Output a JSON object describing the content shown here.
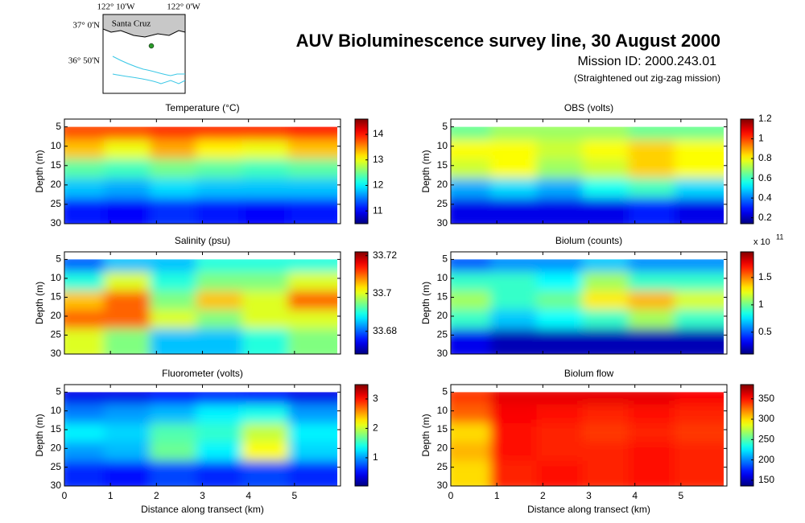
{
  "header": {
    "title": "AUV Bioluminescence survey line, 30 August 2000",
    "mission": "Mission ID: 2000.243.01",
    "note": "(Straightened out zig-zag mission)"
  },
  "map": {
    "lon_labels": [
      "122° 10'W",
      "122° 0'W"
    ],
    "lat_labels": [
      "37° 0'N",
      "36° 50'N"
    ],
    "place": "Santa Cruz"
  },
  "chart_data": [
    {
      "type": "heatmap",
      "title": "Temperature (°C)",
      "ylabel": "Depth (m)",
      "colormap": "jet",
      "x": [
        0.5,
        1.5,
        2.5,
        3.5,
        4.5,
        5.5
      ],
      "y": [
        7.5,
        12.5,
        17.5,
        22.5,
        27.5
      ],
      "z": [
        [
          13.8,
          13.8,
          13.9,
          13.9,
          13.9,
          14.0
        ],
        [
          13.3,
          13.0,
          13.4,
          13.1,
          13.0,
          13.3
        ],
        [
          12.4,
          12.3,
          12.5,
          12.4,
          12.3,
          12.4
        ],
        [
          11.8,
          11.7,
          11.9,
          11.8,
          11.8,
          11.8
        ],
        [
          11.1,
          11.0,
          11.2,
          11.1,
          11.0,
          11.1
        ]
      ],
      "xlim": [
        0,
        6
      ],
      "ylim": [
        3,
        30
      ],
      "y_reversed": true,
      "xticks": [
        0,
        1,
        2,
        3,
        4,
        5
      ],
      "yticks": [
        5,
        10,
        15,
        20,
        25,
        30
      ],
      "clim": [
        10.5,
        14.6
      ],
      "cticks": [
        11,
        12,
        13,
        14
      ]
    },
    {
      "type": "heatmap",
      "title": "OBS (volts)",
      "ylabel": "Depth (m)",
      "colormap": "jet",
      "x": [
        0.5,
        1.5,
        2.5,
        3.5,
        4.5,
        5.5
      ],
      "y": [
        7.5,
        12.5,
        17.5,
        22.5,
        27.5
      ],
      "z": [
        [
          0.65,
          0.7,
          0.7,
          0.7,
          0.65,
          0.65
        ],
        [
          0.8,
          0.8,
          0.75,
          0.8,
          0.85,
          0.8
        ],
        [
          0.75,
          0.8,
          0.7,
          0.75,
          0.85,
          0.8
        ],
        [
          0.45,
          0.5,
          0.45,
          0.55,
          0.6,
          0.5
        ],
        [
          0.25,
          0.25,
          0.25,
          0.25,
          0.3,
          0.25
        ]
      ],
      "xlim": [
        0,
        6
      ],
      "ylim": [
        3,
        30
      ],
      "y_reversed": true,
      "xticks": [
        0,
        1,
        2,
        3,
        4,
        5
      ],
      "yticks": [
        5,
        10,
        15,
        20,
        25,
        30
      ],
      "clim": [
        0.14,
        1.2
      ],
      "cticks": [
        0.2,
        0.4,
        0.6,
        0.8,
        1,
        1.2
      ]
    },
    {
      "type": "heatmap",
      "title": "Salinity (psu)",
      "ylabel": "Depth (m)",
      "colormap": "jet",
      "x": [
        0.5,
        1.5,
        2.5,
        3.5,
        4.5,
        5.5
      ],
      "y": [
        7.5,
        12.5,
        17.5,
        22.5,
        27.5
      ],
      "z": [
        [
          33.68,
          33.685,
          33.685,
          33.69,
          33.69,
          33.69
        ],
        [
          33.69,
          33.7,
          33.69,
          33.695,
          33.695,
          33.7
        ],
        [
          33.705,
          33.71,
          33.695,
          33.705,
          33.7,
          33.71
        ],
        [
          33.71,
          33.71,
          33.7,
          33.695,
          33.7,
          33.7
        ],
        [
          33.7,
          33.695,
          33.685,
          33.685,
          33.69,
          33.695
        ]
      ],
      "xlim": [
        0,
        6
      ],
      "ylim": [
        3,
        30
      ],
      "y_reversed": true,
      "xticks": [
        0,
        1,
        2,
        3,
        4,
        5
      ],
      "yticks": [
        5,
        10,
        15,
        20,
        25,
        30
      ],
      "clim": [
        33.668,
        33.722
      ],
      "cticks": [
        33.68,
        33.7,
        33.72
      ]
    },
    {
      "type": "heatmap",
      "title": "Biolum (counts)",
      "ylabel": "Depth (m)",
      "colormap": "jet",
      "x": [
        0.5,
        1.5,
        2.5,
        3.5,
        4.5,
        5.5
      ],
      "y": [
        7.5,
        12.5,
        17.5,
        22.5,
        27.5
      ],
      "z": [
        [
          0.5,
          0.6,
          0.6,
          0.7,
          0.6,
          0.6
        ],
        [
          0.9,
          0.9,
          0.8,
          1.1,
          0.9,
          0.9
        ],
        [
          1.1,
          0.9,
          1.0,
          1.3,
          1.4,
          1.2
        ],
        [
          0.9,
          0.7,
          0.8,
          0.9,
          1.1,
          0.9
        ],
        [
          0.3,
          0.2,
          0.2,
          0.2,
          0.2,
          0.2
        ]
      ],
      "xlim": [
        0,
        6
      ],
      "ylim": [
        3,
        30
      ],
      "y_reversed": true,
      "xticks": [
        0,
        1,
        2,
        3,
        4,
        5
      ],
      "yticks": [
        5,
        10,
        15,
        20,
        25,
        30
      ],
      "clim": [
        0.1,
        1.97
      ],
      "cticks": [
        0.5,
        1,
        1.5
      ],
      "cscale_label": "x 10",
      "cscale_exponent": 11
    },
    {
      "type": "heatmap",
      "title": "Fluorometer (volts)",
      "ylabel": "Depth (m)",
      "xlabel": "Distance along transect (km)",
      "colormap": "jet",
      "x": [
        0.5,
        1.5,
        2.5,
        3.5,
        4.5,
        5.5
      ],
      "y": [
        7.5,
        12.5,
        17.5,
        22.5,
        27.5
      ],
      "z": [
        [
          0.4,
          0.4,
          0.5,
          0.6,
          0.5,
          0.4
        ],
        [
          0.9,
          1.0,
          1.1,
          1.3,
          1.4,
          1.0
        ],
        [
          1.3,
          1.2,
          1.6,
          1.5,
          2.0,
          1.3
        ],
        [
          1.0,
          1.1,
          1.7,
          1.3,
          2.2,
          1.2
        ],
        [
          0.6,
          0.5,
          0.7,
          0.6,
          0.7,
          0.6
        ]
      ],
      "xlim": [
        0,
        6
      ],
      "ylim": [
        3,
        30
      ],
      "y_reversed": true,
      "xticks": [
        0,
        1,
        2,
        3,
        4,
        5
      ],
      "yticks": [
        5,
        10,
        15,
        20,
        25,
        30
      ],
      "clim": [
        0.04,
        3.49
      ],
      "cticks": [
        1,
        2,
        3
      ]
    },
    {
      "type": "heatmap",
      "title": "Biolum flow",
      "ylabel": "Depth (m)",
      "xlabel": "Distance along transect (km)",
      "colormap": "jet",
      "x": [
        0.5,
        1.5,
        2.5,
        3.5,
        4.5,
        5.5
      ],
      "y": [
        7.5,
        12.5,
        17.5,
        22.5,
        27.5
      ],
      "z": [
        [
          340,
          360,
          360,
          360,
          360,
          355
        ],
        [
          330,
          355,
          350,
          345,
          350,
          345
        ],
        [
          300,
          350,
          345,
          340,
          345,
          340
        ],
        [
          310,
          350,
          345,
          345,
          350,
          345
        ],
        [
          300,
          345,
          350,
          345,
          350,
          345
        ]
      ],
      "xlim": [
        0,
        6
      ],
      "ylim": [
        3,
        30
      ],
      "y_reversed": true,
      "xticks": [
        0,
        1,
        2,
        3,
        4,
        5
      ],
      "yticks": [
        5,
        10,
        15,
        20,
        25,
        30
      ],
      "clim": [
        136,
        385
      ],
      "cticks": [
        150,
        200,
        250,
        300,
        350
      ]
    }
  ]
}
